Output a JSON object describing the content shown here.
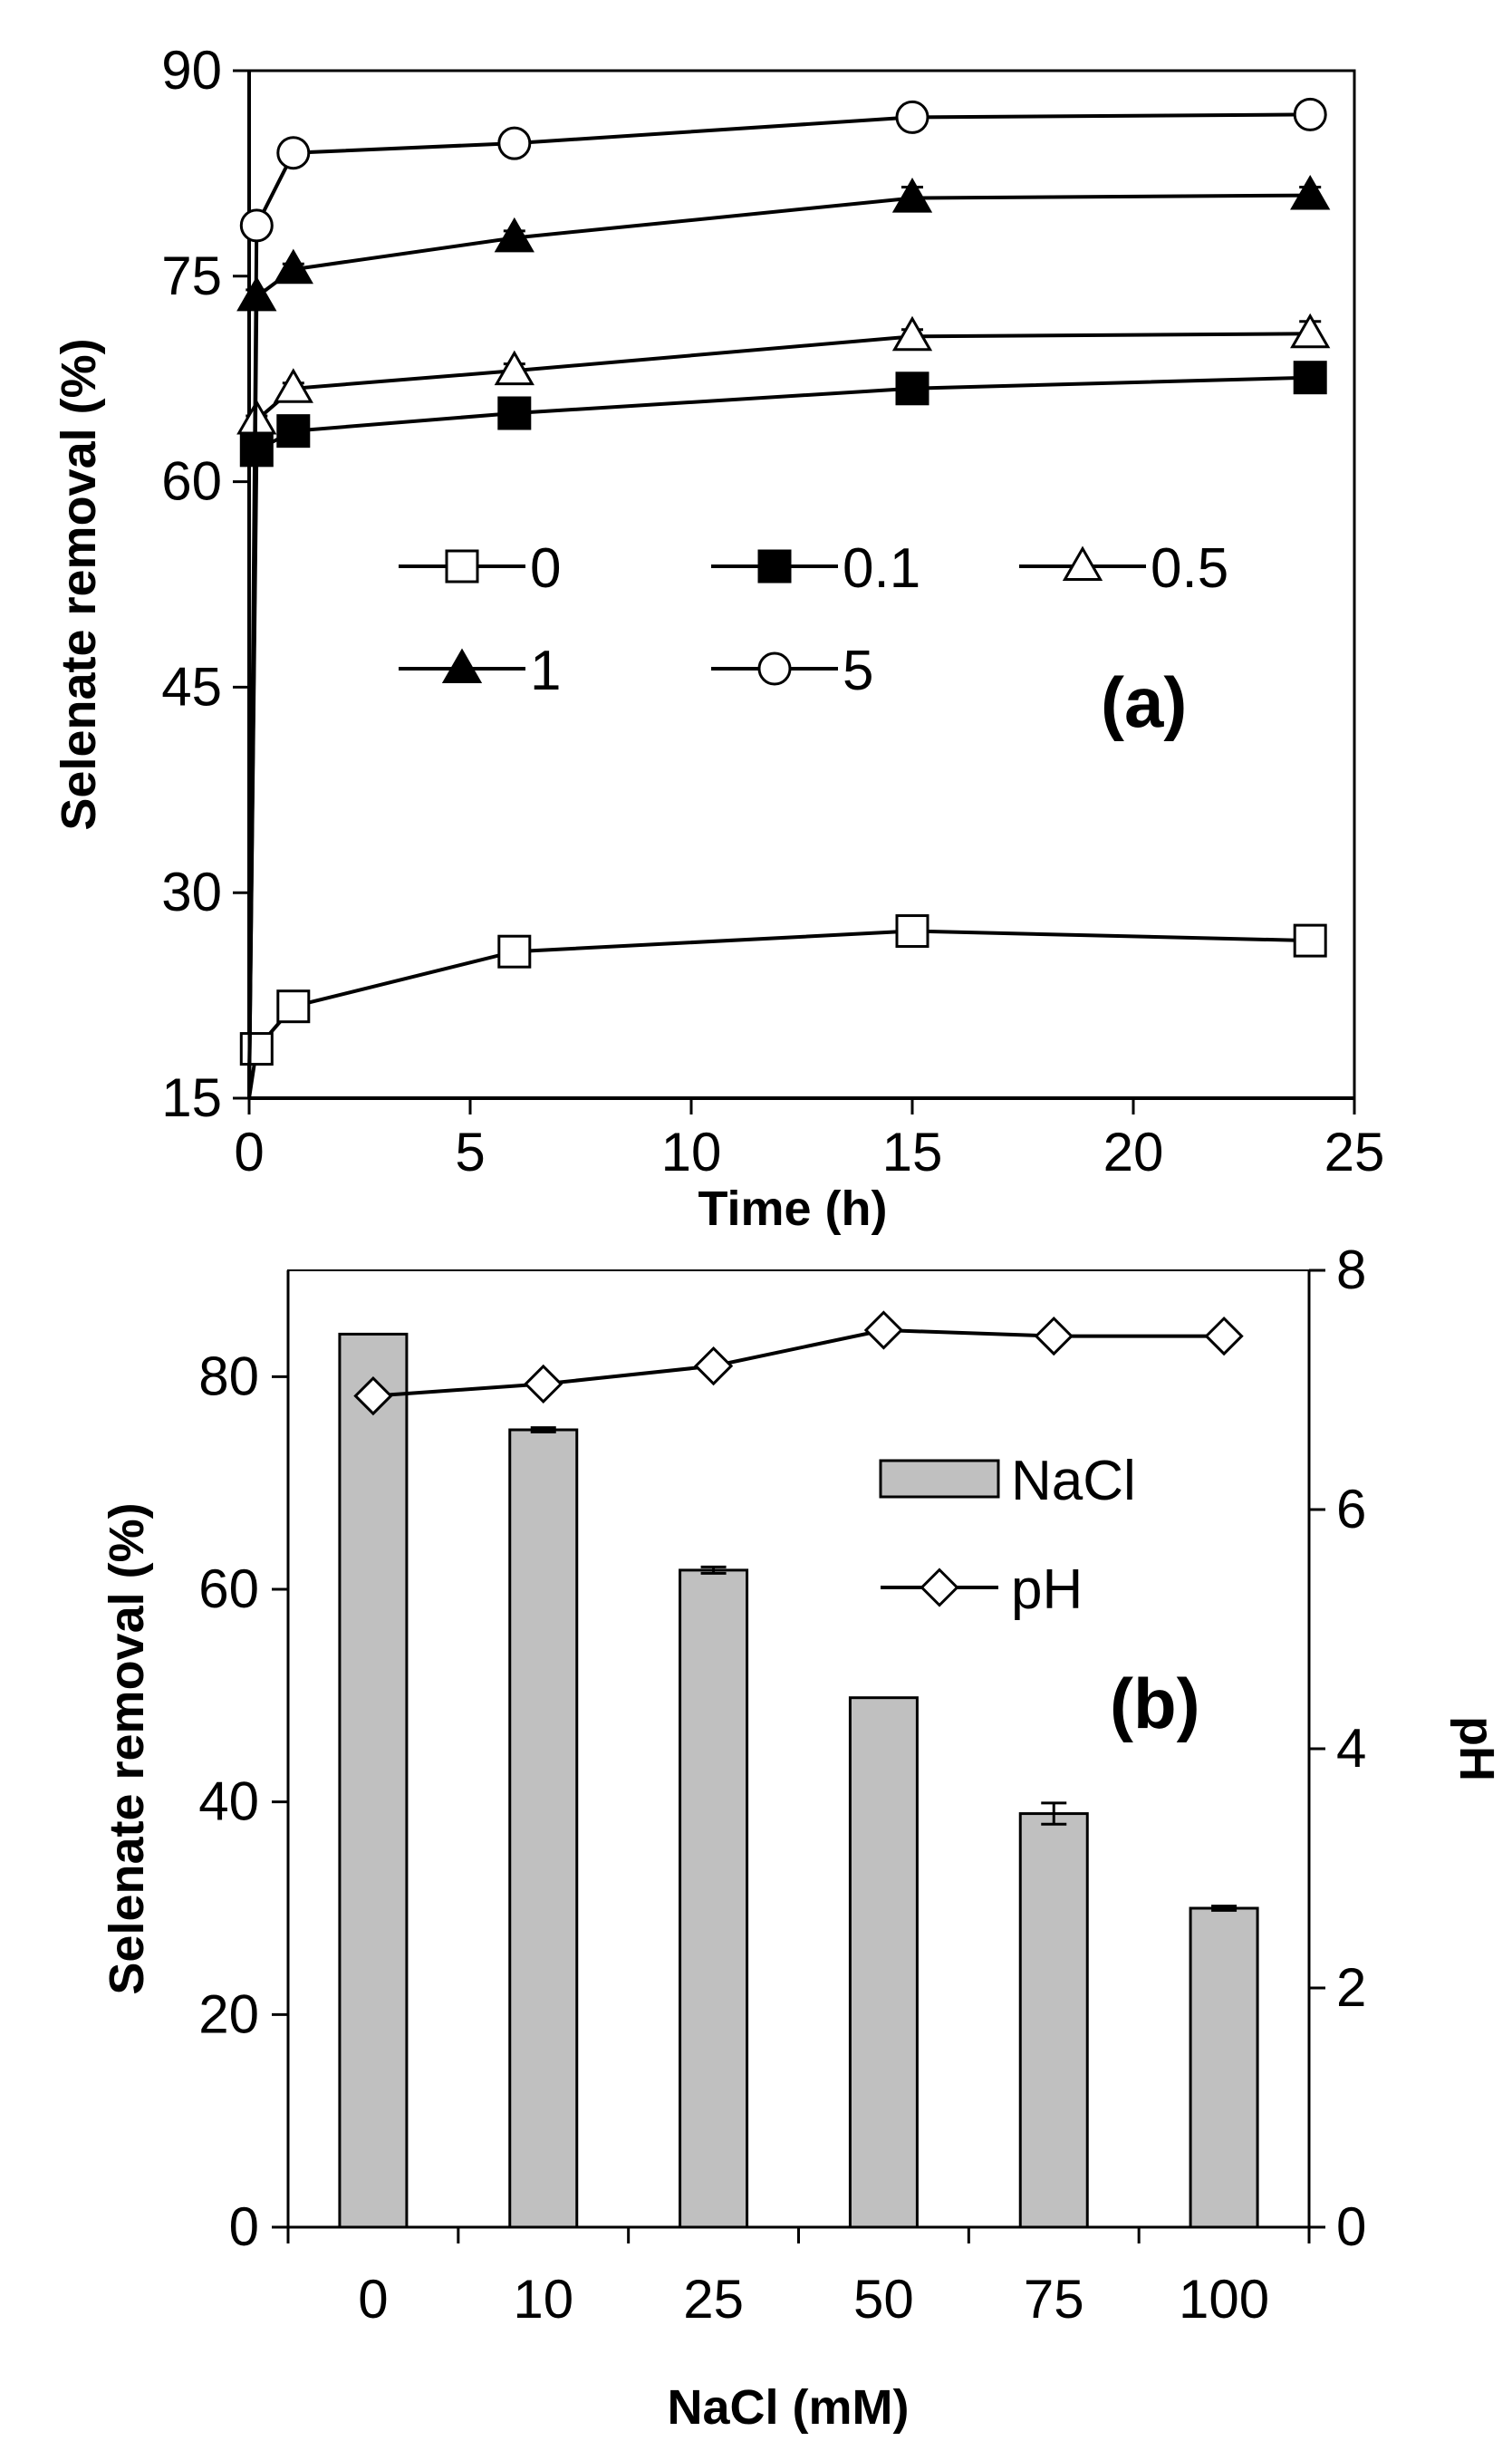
{
  "chart_data": [
    {
      "type": "line",
      "panel_label": "(a)",
      "xlabel": "Time (h)",
      "ylabel": "Selenate removal (%)",
      "xlim": [
        0,
        25
      ],
      "ylim": [
        15,
        90
      ],
      "x_ticks": [
        "0",
        "5",
        "10",
        "15",
        "20",
        "25"
      ],
      "y_ticks": [
        "15",
        "30",
        "45",
        "60",
        "75",
        "90"
      ],
      "x_tick_values": [
        0,
        5,
        10,
        15,
        20,
        25
      ],
      "y_tick_values": [
        15,
        30,
        45,
        60,
        75,
        90
      ],
      "x": [
        0.17,
        1,
        6,
        15,
        24
      ],
      "series": [
        {
          "name": "0",
          "marker": "square-open",
          "values": [
            18.6,
            21.7,
            25.7,
            27.2,
            26.5
          ],
          "errors": [
            0.5,
            0.5,
            0.8,
            0.9,
            0.6
          ]
        },
        {
          "name": "0.1",
          "marker": "square-filled",
          "values": [
            62.3,
            63.7,
            65.0,
            66.8,
            67.6
          ],
          "errors": [
            0.4,
            0.4,
            0.5,
            0.5,
            1.1
          ]
        },
        {
          "name": "0.5",
          "marker": "triangle-open",
          "values": [
            64.5,
            66.8,
            68.1,
            70.6,
            70.8
          ],
          "errors": [
            0.3,
            0.4,
            0.5,
            0.5,
            0.9
          ]
        },
        {
          "name": "1",
          "marker": "triangle-filled",
          "values": [
            73.5,
            75.5,
            77.8,
            80.7,
            80.9
          ],
          "errors": [
            0.5,
            0.4,
            0.5,
            0.8,
            0.6
          ]
        },
        {
          "name": "5",
          "marker": "circle-open",
          "values": [
            78.7,
            84.0,
            84.7,
            86.6,
            86.8
          ],
          "errors": [
            0.5,
            0.4,
            0.5,
            0.8,
            0.3
          ]
        }
      ]
    },
    {
      "type": "bar",
      "panel_label": "(b)",
      "xlabel": "NaCl (mM)",
      "ylabel": "Selenate removal (%)",
      "y2label": "pH",
      "categories": [
        "0",
        "10",
        "25",
        "50",
        "75",
        "100"
      ],
      "ylim": [
        0,
        90
      ],
      "y2lim": [
        0,
        8
      ],
      "y_ticks": [
        "0",
        "20",
        "40",
        "60",
        "80"
      ],
      "y_tick_values": [
        0,
        20,
        40,
        60,
        80
      ],
      "y2_ticks": [
        "0",
        "2",
        "4",
        "6",
        "8"
      ],
      "y2_tick_values": [
        0,
        2,
        4,
        6,
        8
      ],
      "series": [
        {
          "name": "NaCl",
          "axis": "left",
          "kind": "bar",
          "color": "#c0c0c0",
          "values": [
            84.0,
            75.0,
            61.8,
            49.8,
            38.9,
            30.0
          ],
          "errors": [
            0,
            0.2,
            0.3,
            0,
            1.0,
            0.2
          ]
        },
        {
          "name": "pH",
          "axis": "right",
          "kind": "line",
          "marker": "diamond-open",
          "values": [
            6.95,
            7.05,
            7.2,
            7.5,
            7.45,
            7.45
          ]
        }
      ]
    }
  ]
}
